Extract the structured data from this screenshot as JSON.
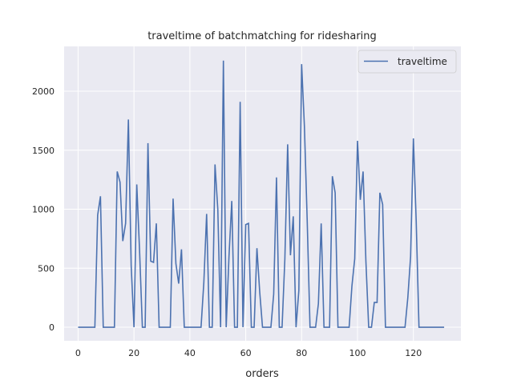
{
  "chart_data": {
    "type": "line",
    "title": "traveltime of batchmatching for ridesharing",
    "xlabel": "orders",
    "ylabel": "",
    "xlim": [
      -5,
      137
    ],
    "ylim": [
      -115,
      2380
    ],
    "xticks": [
      0,
      20,
      40,
      60,
      80,
      100,
      120
    ],
    "yticks": [
      0,
      500,
      1000,
      1500,
      2000
    ],
    "grid": true,
    "legend_position": "top-right",
    "background": "#eaeaf2",
    "series": [
      {
        "name": "traveltime",
        "color": "#4c72b0",
        "x": [
          0,
          1,
          2,
          3,
          4,
          5,
          6,
          7,
          8,
          9,
          10,
          11,
          12,
          13,
          14,
          15,
          16,
          17,
          18,
          19,
          20,
          21,
          22,
          23,
          24,
          25,
          26,
          27,
          28,
          29,
          30,
          31,
          32,
          33,
          34,
          35,
          36,
          37,
          38,
          39,
          40,
          41,
          42,
          43,
          44,
          45,
          46,
          47,
          48,
          49,
          50,
          51,
          52,
          53,
          54,
          55,
          56,
          57,
          58,
          59,
          60,
          61,
          62,
          63,
          64,
          65,
          66,
          67,
          68,
          69,
          70,
          71,
          72,
          73,
          74,
          75,
          76,
          77,
          78,
          79,
          80,
          81,
          82,
          83,
          84,
          85,
          86,
          87,
          88,
          89,
          90,
          91,
          92,
          93,
          94,
          95,
          96,
          97,
          98,
          99,
          100,
          101,
          102,
          103,
          104,
          105,
          106,
          107,
          108,
          109,
          110,
          111,
          112,
          113,
          114,
          115,
          116,
          117,
          118,
          119,
          120,
          121,
          122,
          123,
          124,
          125,
          126,
          127,
          128,
          129,
          130,
          131
        ],
        "values": [
          0,
          0,
          0,
          0,
          0,
          0,
          0,
          950,
          1110,
          0,
          0,
          0,
          0,
          0,
          1320,
          1230,
          730,
          880,
          1760,
          520,
          0,
          1210,
          650,
          0,
          0,
          1560,
          560,
          550,
          880,
          0,
          0,
          0,
          0,
          0,
          1090,
          540,
          370,
          660,
          0,
          0,
          0,
          0,
          0,
          0,
          0,
          380,
          960,
          0,
          0,
          1380,
          1000,
          0,
          2260,
          0,
          600,
          1070,
          0,
          0,
          1910,
          0,
          870,
          880,
          0,
          0,
          670,
          300,
          0,
          0,
          0,
          0,
          280,
          1270,
          0,
          0,
          580,
          1550,
          610,
          940,
          0,
          310,
          2230,
          1700,
          900,
          0,
          0,
          0,
          200,
          880,
          0,
          0,
          0,
          1280,
          1140,
          0,
          0,
          0,
          0,
          0,
          350,
          580,
          1580,
          1080,
          1320,
          560,
          0,
          0,
          210,
          210,
          1140,
          1040,
          0,
          0,
          0,
          0,
          0,
          0,
          0,
          0,
          250,
          600,
          1600,
          900,
          0,
          0,
          0,
          0,
          0,
          0,
          0,
          0,
          0,
          0
        ]
      }
    ]
  }
}
